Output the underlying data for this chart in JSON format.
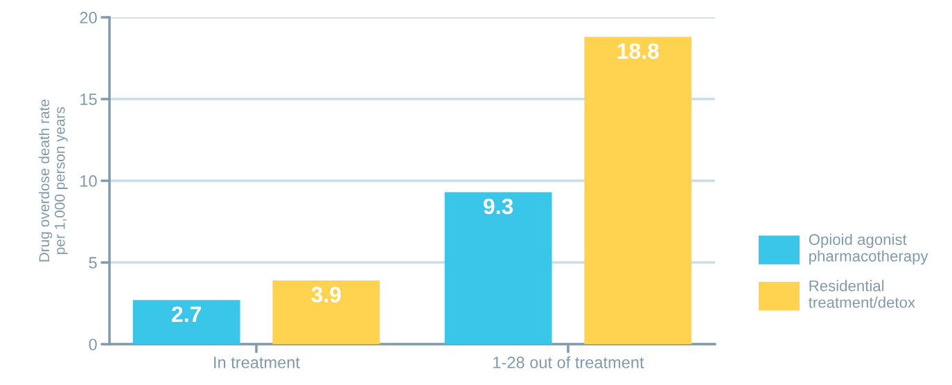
{
  "chart_data": {
    "type": "bar",
    "ylabel": "Drug overdose death rate\nper 1,000 person years",
    "categories": [
      "In treatment",
      "1-28 out of treatment"
    ],
    "series": [
      {
        "name": "Opioid agonist\npharmacotherapy",
        "color": "#3ac6e8",
        "values": [
          2.7,
          9.3
        ]
      },
      {
        "name": "Residential\ntreatment/detox",
        "color": "#ffd34f",
        "values": [
          3.9,
          18.8
        ]
      }
    ],
    "ylim": [
      0,
      20
    ],
    "yticks": [
      0,
      5,
      10,
      15,
      20
    ],
    "grid": "y",
    "legend": "right",
    "data_labels": true
  }
}
